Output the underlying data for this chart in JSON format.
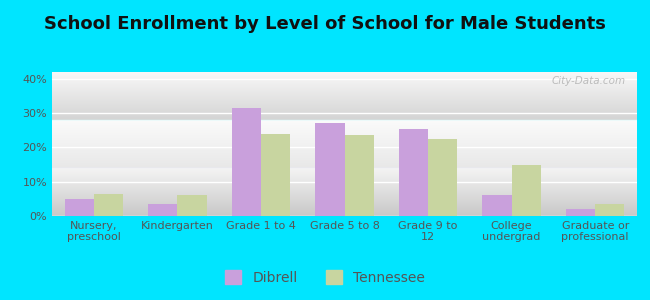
{
  "title": "School Enrollment by Level of School for Male Students",
  "categories": [
    "Nursery,\npreschool",
    "Kindergarten",
    "Grade 1 to 4",
    "Grade 5 to 8",
    "Grade 9 to\n12",
    "College\nundergrad",
    "Graduate or\nprofessional"
  ],
  "dibrell": [
    5.0,
    3.5,
    31.5,
    27.0,
    25.5,
    6.0,
    2.0
  ],
  "tennessee": [
    6.5,
    6.0,
    24.0,
    23.5,
    22.5,
    15.0,
    3.5
  ],
  "dibrell_color": "#c9a0dc",
  "tennessee_color": "#c8d5a0",
  "background_outer": "#00e5ff",
  "bg_top_color": "#f8fbf4",
  "bg_bottom_color": "#d4e8c8",
  "ylim": [
    0,
    42
  ],
  "yticks": [
    0,
    10,
    20,
    30,
    40
  ],
  "bar_width": 0.35,
  "legend_labels": [
    "Dibrell",
    "Tennessee"
  ],
  "watermark": "City-Data.com",
  "title_fontsize": 13,
  "tick_fontsize": 8,
  "legend_fontsize": 10,
  "title_color": "#111111",
  "tick_color": "#555555"
}
